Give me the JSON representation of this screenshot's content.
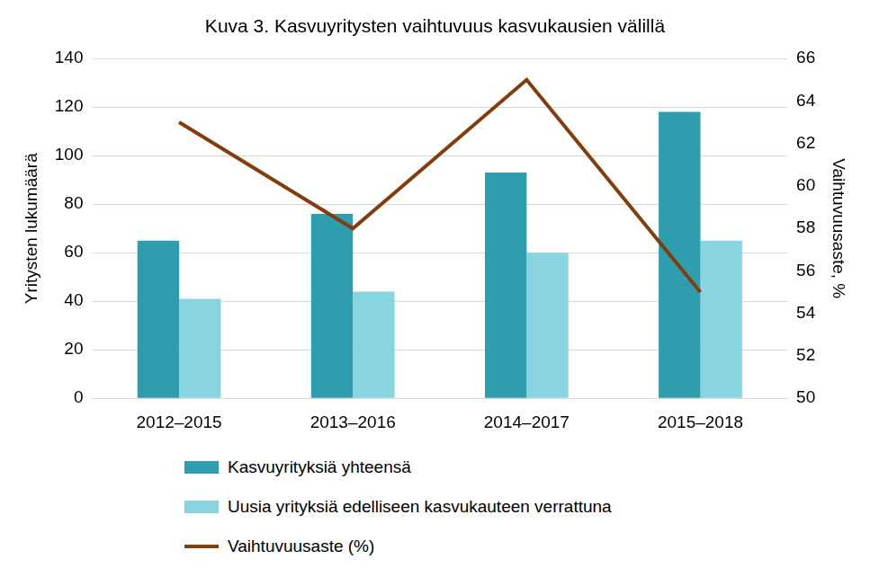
{
  "chart_data": {
    "type": "bar",
    "title": "Kuva 3. Kasvuyritysten vaihtuvuus kasvukausien välillä",
    "categories": [
      "2012–2015",
      "2013–2016",
      "2014–2017",
      "2015–2018"
    ],
    "y_label": "Yritysten lukumäärä",
    "y2_label": "Vaihtuvuusaste, %",
    "ylim": [
      0,
      140
    ],
    "yticks": [
      0,
      20,
      40,
      60,
      80,
      100,
      120,
      140
    ],
    "y2lim": [
      50,
      66
    ],
    "y2ticks": [
      50,
      52,
      54,
      56,
      58,
      60,
      62,
      64,
      66
    ],
    "grid": true,
    "legend": "bottom",
    "series": [
      {
        "name": "Kasvuyrityksiä yhteensä",
        "type": "bar",
        "color": "#2e9dad",
        "values": [
          65,
          76,
          93,
          118
        ]
      },
      {
        "name": "Uusia yrityksiä edelliseen kasvukauteen verrattuna",
        "type": "bar",
        "color": "#88d5e1",
        "values": [
          41,
          44,
          60,
          65
        ]
      },
      {
        "name": "Vaihtuvuusaste (%)",
        "type": "line",
        "color": "#843c0c",
        "axis": "y2",
        "marker": "none",
        "values": [
          63,
          58,
          65,
          55
        ]
      }
    ]
  }
}
